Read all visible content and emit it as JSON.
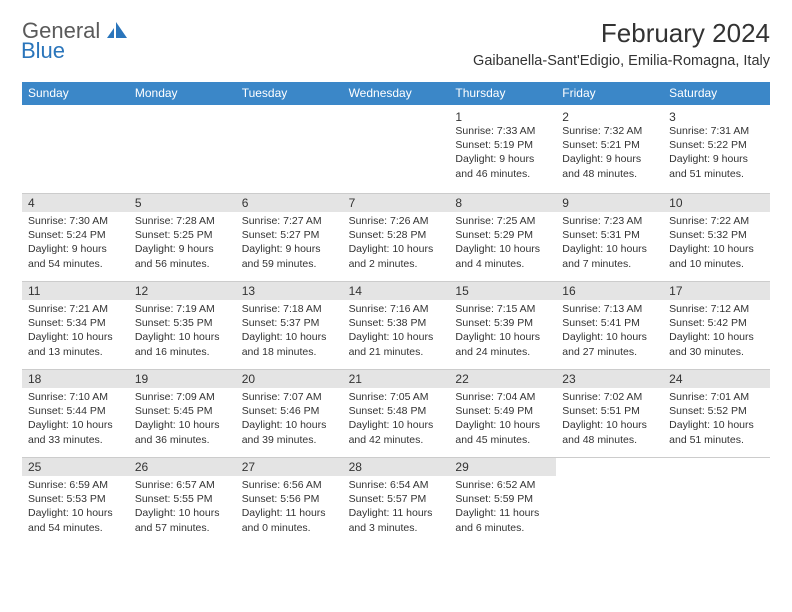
{
  "logo": {
    "general": "General",
    "blue": "Blue"
  },
  "title": "February 2024",
  "location": "Gaibanella-Sant'Edigio, Emilia-Romagna, Italy",
  "colors": {
    "header_bg": "#3b87c8",
    "cell_header_bg": "#e4e4e4",
    "divider": "#cccccc",
    "text": "#333333",
    "logo_gray": "#5a5a5a",
    "logo_blue": "#2a75bb"
  },
  "dayNames": [
    "Sunday",
    "Monday",
    "Tuesday",
    "Wednesday",
    "Thursday",
    "Friday",
    "Saturday"
  ],
  "weeks": [
    [
      null,
      null,
      null,
      null,
      {
        "d": "1",
        "sr": "7:33 AM",
        "ss": "5:19 PM",
        "dl": "9 hours and 46 minutes."
      },
      {
        "d": "2",
        "sr": "7:32 AM",
        "ss": "5:21 PM",
        "dl": "9 hours and 48 minutes."
      },
      {
        "d": "3",
        "sr": "7:31 AM",
        "ss": "5:22 PM",
        "dl": "9 hours and 51 minutes."
      }
    ],
    [
      {
        "d": "4",
        "sr": "7:30 AM",
        "ss": "5:24 PM",
        "dl": "9 hours and 54 minutes."
      },
      {
        "d": "5",
        "sr": "7:28 AM",
        "ss": "5:25 PM",
        "dl": "9 hours and 56 minutes."
      },
      {
        "d": "6",
        "sr": "7:27 AM",
        "ss": "5:27 PM",
        "dl": "9 hours and 59 minutes."
      },
      {
        "d": "7",
        "sr": "7:26 AM",
        "ss": "5:28 PM",
        "dl": "10 hours and 2 minutes."
      },
      {
        "d": "8",
        "sr": "7:25 AM",
        "ss": "5:29 PM",
        "dl": "10 hours and 4 minutes."
      },
      {
        "d": "9",
        "sr": "7:23 AM",
        "ss": "5:31 PM",
        "dl": "10 hours and 7 minutes."
      },
      {
        "d": "10",
        "sr": "7:22 AM",
        "ss": "5:32 PM",
        "dl": "10 hours and 10 minutes."
      }
    ],
    [
      {
        "d": "11",
        "sr": "7:21 AM",
        "ss": "5:34 PM",
        "dl": "10 hours and 13 minutes."
      },
      {
        "d": "12",
        "sr": "7:19 AM",
        "ss": "5:35 PM",
        "dl": "10 hours and 16 minutes."
      },
      {
        "d": "13",
        "sr": "7:18 AM",
        "ss": "5:37 PM",
        "dl": "10 hours and 18 minutes."
      },
      {
        "d": "14",
        "sr": "7:16 AM",
        "ss": "5:38 PM",
        "dl": "10 hours and 21 minutes."
      },
      {
        "d": "15",
        "sr": "7:15 AM",
        "ss": "5:39 PM",
        "dl": "10 hours and 24 minutes."
      },
      {
        "d": "16",
        "sr": "7:13 AM",
        "ss": "5:41 PM",
        "dl": "10 hours and 27 minutes."
      },
      {
        "d": "17",
        "sr": "7:12 AM",
        "ss": "5:42 PM",
        "dl": "10 hours and 30 minutes."
      }
    ],
    [
      {
        "d": "18",
        "sr": "7:10 AM",
        "ss": "5:44 PM",
        "dl": "10 hours and 33 minutes."
      },
      {
        "d": "19",
        "sr": "7:09 AM",
        "ss": "5:45 PM",
        "dl": "10 hours and 36 minutes."
      },
      {
        "d": "20",
        "sr": "7:07 AM",
        "ss": "5:46 PM",
        "dl": "10 hours and 39 minutes."
      },
      {
        "d": "21",
        "sr": "7:05 AM",
        "ss": "5:48 PM",
        "dl": "10 hours and 42 minutes."
      },
      {
        "d": "22",
        "sr": "7:04 AM",
        "ss": "5:49 PM",
        "dl": "10 hours and 45 minutes."
      },
      {
        "d": "23",
        "sr": "7:02 AM",
        "ss": "5:51 PM",
        "dl": "10 hours and 48 minutes."
      },
      {
        "d": "24",
        "sr": "7:01 AM",
        "ss": "5:52 PM",
        "dl": "10 hours and 51 minutes."
      }
    ],
    [
      {
        "d": "25",
        "sr": "6:59 AM",
        "ss": "5:53 PM",
        "dl": "10 hours and 54 minutes."
      },
      {
        "d": "26",
        "sr": "6:57 AM",
        "ss": "5:55 PM",
        "dl": "10 hours and 57 minutes."
      },
      {
        "d": "27",
        "sr": "6:56 AM",
        "ss": "5:56 PM",
        "dl": "11 hours and 0 minutes."
      },
      {
        "d": "28",
        "sr": "6:54 AM",
        "ss": "5:57 PM",
        "dl": "11 hours and 3 minutes."
      },
      {
        "d": "29",
        "sr": "6:52 AM",
        "ss": "5:59 PM",
        "dl": "11 hours and 6 minutes."
      },
      null,
      null
    ]
  ],
  "labels": {
    "sunrise": "Sunrise: ",
    "sunset": "Sunset: ",
    "daylight": "Daylight: "
  }
}
